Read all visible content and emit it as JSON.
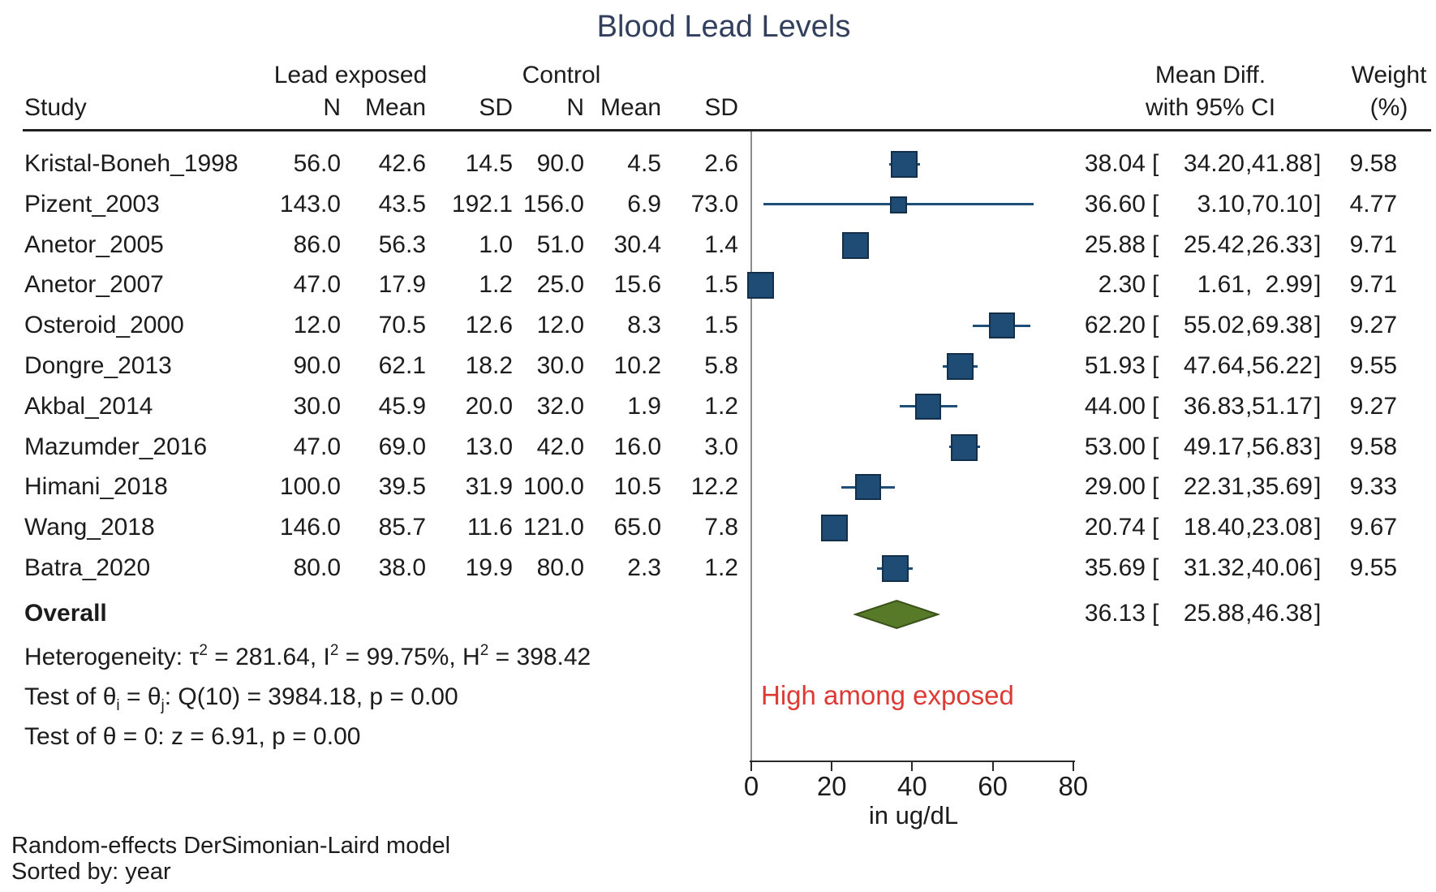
{
  "title": "Blood Lead Levels",
  "header": {
    "group_exposed": "Lead exposed",
    "group_control": "Control",
    "study": "Study",
    "n": "N",
    "mean": "Mean",
    "sd": "SD",
    "md_line1": "Mean Diff.",
    "md_line2": "with 95% CI",
    "wt_line1": "Weight",
    "wt_line2": "(%)"
  },
  "ci_punct": {
    "open": "[",
    "comma": ",",
    "close": "]"
  },
  "chart_data": {
    "type": "scatter",
    "subtype": "forest-plot",
    "xlabel": "in ug/dL",
    "x_ticks": [
      0,
      20,
      40,
      60,
      80
    ],
    "xlim": [
      0,
      84
    ],
    "grid": false,
    "marker_color": "#1e4c74",
    "ci_color": "#1f4e79",
    "diamond_color": "#567a28",
    "studies": [
      {
        "study": "Kristal-Boneh_1998",
        "n1": 56.0,
        "mean1": 42.6,
        "sd1": 14.5,
        "n2": 90.0,
        "mean2": 4.5,
        "sd2": 2.6,
        "md": 38.04,
        "lo": 34.2,
        "hi": 41.88,
        "weight": 9.58
      },
      {
        "study": "Pizent_2003",
        "n1": 143.0,
        "mean1": 43.5,
        "sd1": 192.1,
        "n2": 156.0,
        "mean2": 6.9,
        "sd2": 73.0,
        "md": 36.6,
        "lo": 3.1,
        "hi": 70.1,
        "weight": 4.77
      },
      {
        "study": "Anetor_2005",
        "n1": 86.0,
        "mean1": 56.3,
        "sd1": 1.0,
        "n2": 51.0,
        "mean2": 30.4,
        "sd2": 1.4,
        "md": 25.88,
        "lo": 25.42,
        "hi": 26.33,
        "weight": 9.71
      },
      {
        "study": "Anetor_2007",
        "n1": 47.0,
        "mean1": 17.9,
        "sd1": 1.2,
        "n2": 25.0,
        "mean2": 15.6,
        "sd2": 1.5,
        "md": 2.3,
        "lo": 1.61,
        "hi": 2.99,
        "weight": 9.71
      },
      {
        "study": "Osteroid_2000",
        "n1": 12.0,
        "mean1": 70.5,
        "sd1": 12.6,
        "n2": 12.0,
        "mean2": 8.3,
        "sd2": 1.5,
        "md": 62.2,
        "lo": 55.02,
        "hi": 69.38,
        "weight": 9.27
      },
      {
        "study": "Dongre_2013",
        "n1": 90.0,
        "mean1": 62.1,
        "sd1": 18.2,
        "n2": 30.0,
        "mean2": 10.2,
        "sd2": 5.8,
        "md": 51.93,
        "lo": 47.64,
        "hi": 56.22,
        "weight": 9.55
      },
      {
        "study": "Akbal_2014",
        "n1": 30.0,
        "mean1": 45.9,
        "sd1": 20.0,
        "n2": 32.0,
        "mean2": 1.9,
        "sd2": 1.2,
        "md": 44.0,
        "lo": 36.83,
        "hi": 51.17,
        "weight": 9.27
      },
      {
        "study": "Mazumder_2016",
        "n1": 47.0,
        "mean1": 69.0,
        "sd1": 13.0,
        "n2": 42.0,
        "mean2": 16.0,
        "sd2": 3.0,
        "md": 53.0,
        "lo": 49.17,
        "hi": 56.83,
        "weight": 9.58
      },
      {
        "study": "Himani_2018",
        "n1": 100.0,
        "mean1": 39.5,
        "sd1": 31.9,
        "n2": 100.0,
        "mean2": 10.5,
        "sd2": 12.2,
        "md": 29.0,
        "lo": 22.31,
        "hi": 35.69,
        "weight": 9.33
      },
      {
        "study": "Wang_2018",
        "n1": 146.0,
        "mean1": 85.7,
        "sd1": 11.6,
        "n2": 121.0,
        "mean2": 65.0,
        "sd2": 7.8,
        "md": 20.74,
        "lo": 18.4,
        "hi": 23.08,
        "weight": 9.67
      },
      {
        "study": "Batra_2020",
        "n1": 80.0,
        "mean1": 38.0,
        "sd1": 19.9,
        "n2": 80.0,
        "mean2": 2.3,
        "sd2": 1.2,
        "md": 35.69,
        "lo": 31.32,
        "hi": 40.06,
        "weight": 9.55
      }
    ],
    "overall": {
      "label": "Overall",
      "md": 36.13,
      "lo": 25.88,
      "hi": 46.38
    },
    "annotation": {
      "text": "High among exposed",
      "color": "#dd3a35"
    }
  },
  "stats": [
    {
      "parts": [
        {
          "t": "Heterogeneity: τ"
        },
        {
          "t": "2",
          "s": "sup"
        },
        {
          "t": " = 281.64, I"
        },
        {
          "t": "2",
          "s": "sup"
        },
        {
          "t": " = 99.75%, H"
        },
        {
          "t": "2",
          "s": "sup"
        },
        {
          "t": " = 398.42"
        }
      ]
    },
    {
      "parts": [
        {
          "t": "Test of θ"
        },
        {
          "t": "i",
          "s": "sub"
        },
        {
          "t": " = θ"
        },
        {
          "t": "j",
          "s": "sub"
        },
        {
          "t": ": Q(10) = 3984.18, p = 0.00"
        }
      ]
    },
    {
      "parts": [
        {
          "t": "Test of θ = 0: z = 6.91, p = 0.00"
        }
      ]
    }
  ],
  "footer": {
    "line1": "Random-effects DerSimonian-Laird model",
    "line2": "Sorted by: year"
  }
}
